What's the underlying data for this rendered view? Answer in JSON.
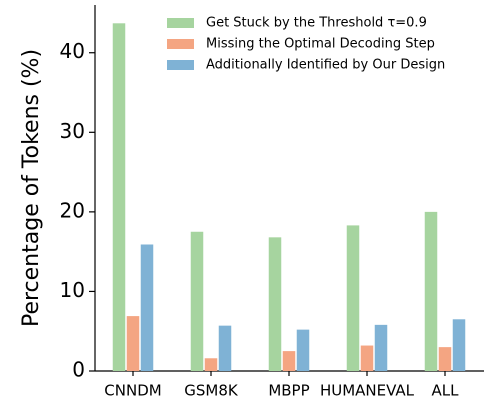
{
  "chart_data": {
    "type": "bar",
    "ylabel": "Percentage of Tokens (%)",
    "categories": [
      "CNNDM",
      "GSM8K",
      "MBPP",
      "HUMANEVAL",
      "ALL"
    ],
    "series": [
      {
        "name": "Get Stuck by the Threshold τ=0.9",
        "color": "#a6d49f",
        "values": [
          43.7,
          17.5,
          16.8,
          18.3,
          20.0
        ]
      },
      {
        "name": "Missing the Optimal Decoding Step",
        "color": "#f4a582",
        "values": [
          6.9,
          1.6,
          2.5,
          3.2,
          3.0
        ]
      },
      {
        "name": "Additionally Identified by Our Design",
        "color": "#7fb2d5",
        "values": [
          15.9,
          5.7,
          5.2,
          5.8,
          6.5
        ]
      }
    ],
    "ylim": [
      0,
      46
    ],
    "yticks": [
      0,
      10,
      20,
      30,
      40
    ],
    "legend": "upper right"
  }
}
